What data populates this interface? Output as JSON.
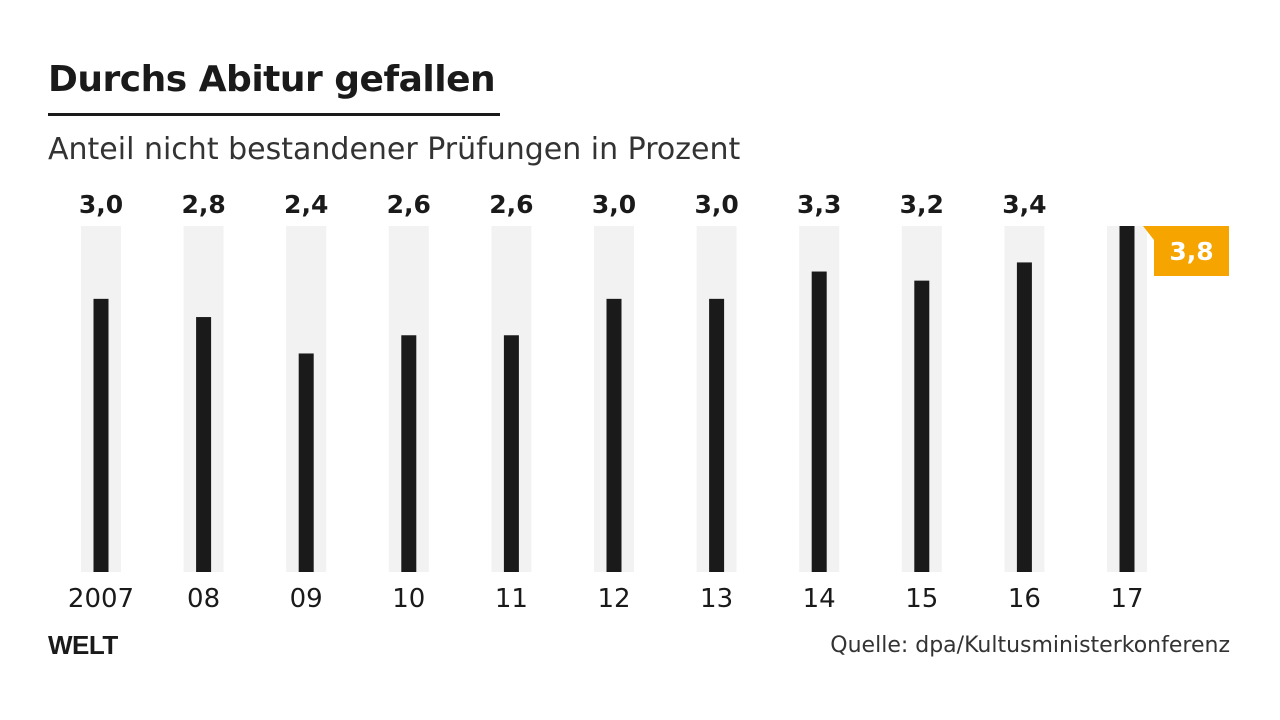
{
  "header": {
    "title": "Durchs Abitur gefallen",
    "subtitle": "Anteil nicht bestandener Prüfungen in Prozent"
  },
  "footer": {
    "logo": "WELT",
    "source": "Quelle: dpa/Kultusministerkonferenz"
  },
  "colors": {
    "bar": "#1a1a1a",
    "track": "#f2f2f2",
    "highlight": "#f5a400",
    "highlight_text": "#ffffff"
  },
  "chart_data": {
    "type": "bar",
    "title": "Durchs Abitur gefallen",
    "subtitle": "Anteil nicht bestandener Prüfungen in Prozent",
    "categories": [
      "2007",
      "08",
      "09",
      "10",
      "11",
      "12",
      "13",
      "14",
      "15",
      "16",
      "17"
    ],
    "values": [
      3.0,
      2.8,
      2.4,
      2.6,
      2.6,
      3.0,
      3.0,
      3.3,
      3.2,
      3.4,
      3.8
    ],
    "value_labels": [
      "3,0",
      "2,8",
      "2,4",
      "2,6",
      "2,6",
      "3,0",
      "3,0",
      "3,3",
      "3,2",
      "3,4",
      "3,8"
    ],
    "highlight_index": 10,
    "ylim": [
      0,
      3.8
    ],
    "grid": false,
    "legend": "none",
    "xlabel": "",
    "ylabel": ""
  }
}
